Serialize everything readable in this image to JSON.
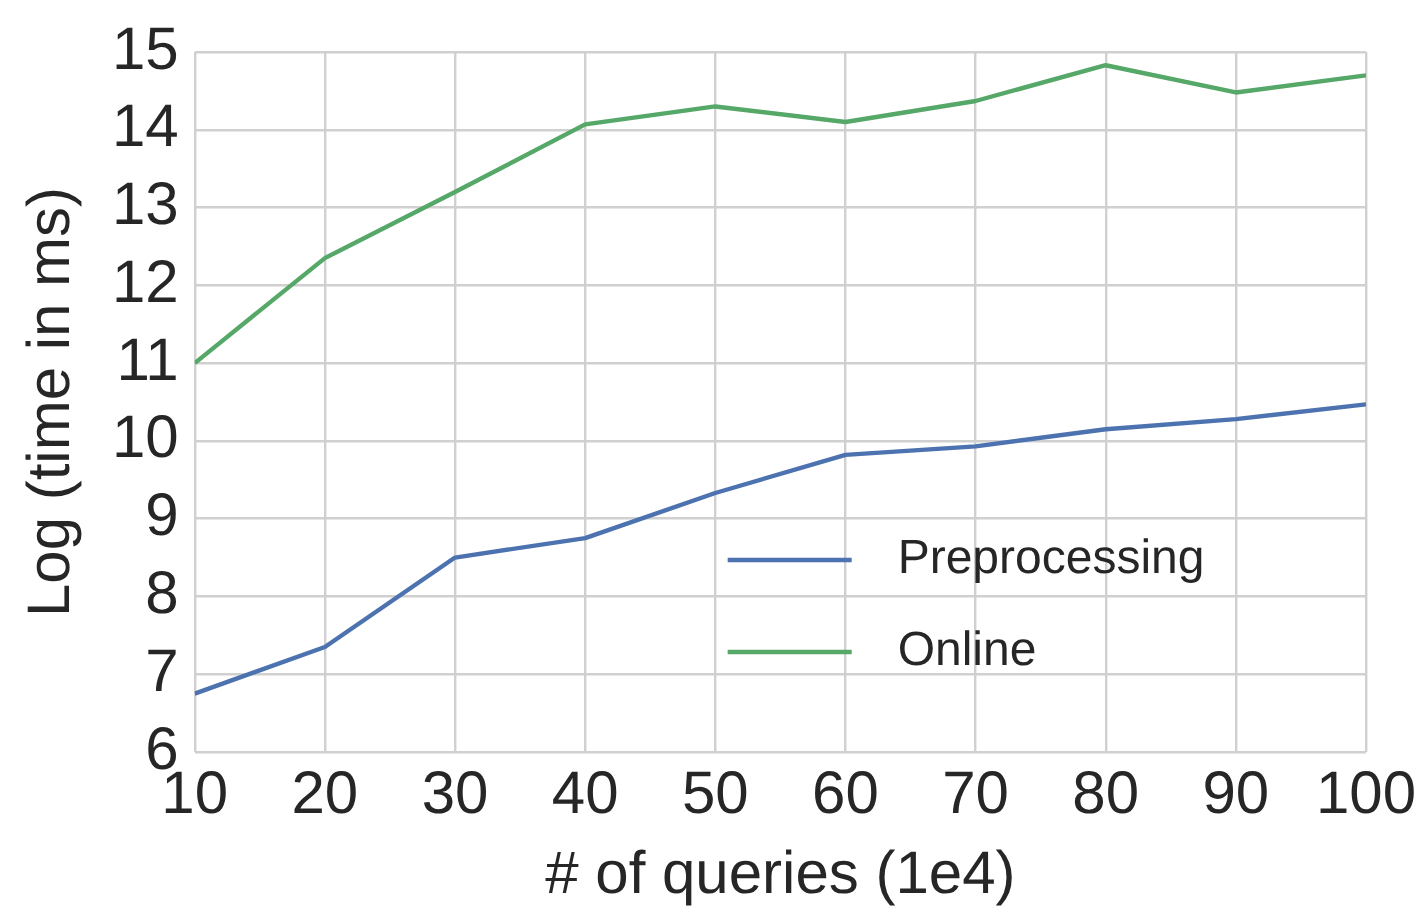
{
  "chart_data": {
    "type": "line",
    "xlabel": "# of queries (1e4)",
    "ylabel": "Log (time in ms)",
    "x": [
      10,
      20,
      30,
      40,
      50,
      60,
      70,
      80,
      90,
      100
    ],
    "series": [
      {
        "name": "Preprocessing",
        "color": "#4c72b0",
        "values": [
          6.75,
          7.35,
          8.5,
          8.75,
          9.33,
          9.82,
          9.93,
          10.15,
          10.28,
          10.47
        ]
      },
      {
        "name": "Online",
        "color": "#55a868",
        "values": [
          11.0,
          12.35,
          13.2,
          14.07,
          14.3,
          14.1,
          14.37,
          14.83,
          14.48,
          14.7
        ]
      }
    ],
    "xlim": [
      10,
      100
    ],
    "xticks": [
      10,
      20,
      30,
      40,
      50,
      60,
      70,
      80,
      90,
      100
    ],
    "ylim": [
      6,
      15
    ],
    "yticks": [
      6,
      7,
      8,
      9,
      10,
      11,
      12,
      13,
      14,
      15
    ],
    "grid": true,
    "legend": "lower right",
    "marker": "none",
    "line_style": "solid"
  }
}
